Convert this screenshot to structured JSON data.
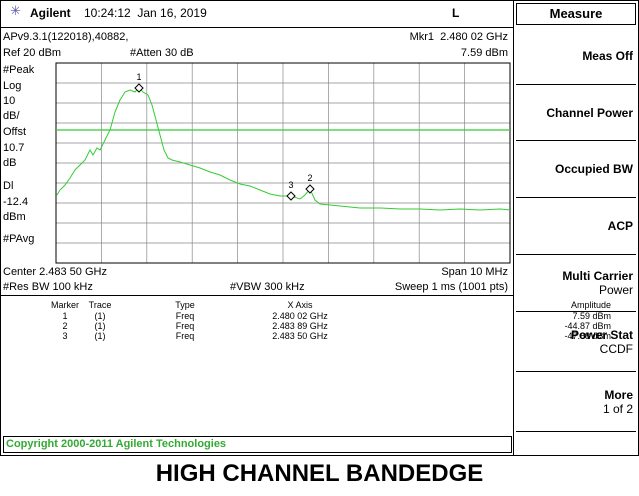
{
  "header": {
    "brand": "Agilent",
    "time": "10:24:12  Jan 16, 2019",
    "mode": "L"
  },
  "info": {
    "version": "APv9.3.1(122018),40882,",
    "marker": "Mkr1  2.480 02 GHz",
    "ref": "Ref 20 dBm",
    "atten": "#Atten 30 dB",
    "marker_amp": "7.59 dBm"
  },
  "left_labels": [
    "#Peak",
    "Log",
    "10",
    "dB/",
    "Offst",
    "10.7",
    "dB",
    "Dl",
    "-12.4",
    "dBm",
    "#PAvg"
  ],
  "footer": {
    "center": "Center 2.483 50 GHz",
    "span": "Span 10 MHz",
    "rbw": "#Res BW 100 kHz",
    "vbw": "#VBW 300 kHz",
    "sweep": "Sweep 1 ms (1001 pts)"
  },
  "trace_markers": [
    "1",
    "2",
    "3"
  ],
  "table": {
    "headers": [
      "Marker",
      "Trace",
      "Type",
      "X Axis",
      "Amplitude"
    ],
    "rows": [
      [
        "1",
        "(1)",
        "Freq",
        "2.480 02 GHz",
        "7.59 dBm"
      ],
      [
        "2",
        "(1)",
        "Freq",
        "2.483 89 GHz",
        "-44.87 dBm"
      ],
      [
        "3",
        "(1)",
        "Freq",
        "2.483 50 GHz",
        "-47.88 dBm"
      ]
    ]
  },
  "status": "Copyright 2000-2011 Agilent Technologies",
  "menu": {
    "title": "Measure",
    "keys": [
      [
        "Meas Off"
      ],
      [
        "Channel Power"
      ],
      [
        "Occupied BW"
      ],
      [
        "ACP"
      ],
      [
        "Multi Carrier",
        "Power"
      ],
      [
        "Power Stat",
        "CCDF"
      ],
      [
        "More",
        "1 of 2"
      ]
    ]
  },
  "caption": "HIGH CHANNEL BANDEDGE"
}
